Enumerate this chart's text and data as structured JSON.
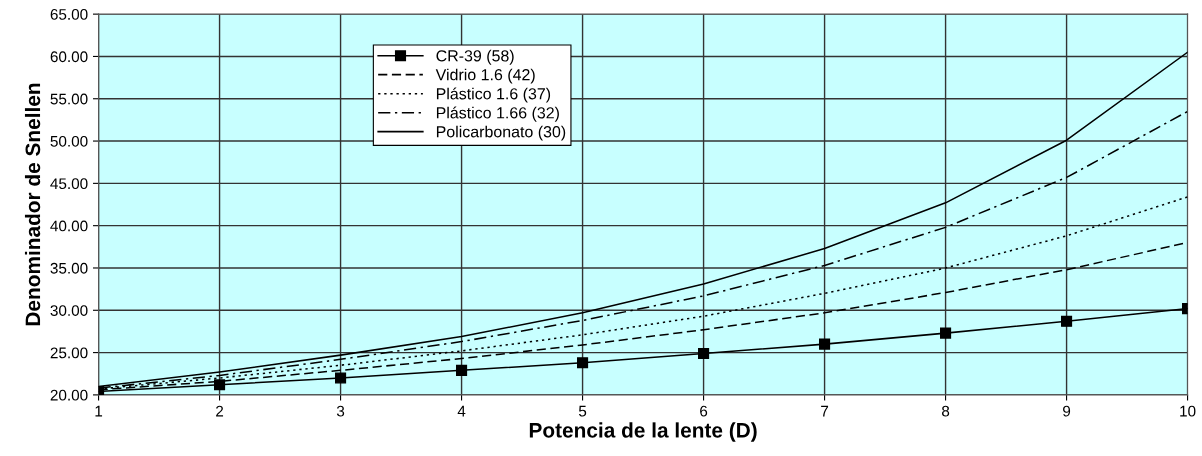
{
  "chart_data": {
    "type": "line",
    "xlabel": "Potencia de la lente (D)",
    "ylabel": "Denominador de Snellen",
    "x": [
      1,
      2,
      3,
      4,
      5,
      6,
      7,
      8,
      9,
      10
    ],
    "xlim": [
      1,
      10
    ],
    "xticks": [
      1,
      2,
      3,
      4,
      5,
      6,
      7,
      8,
      9,
      10
    ],
    "ylim": [
      20,
      65
    ],
    "yticks": [
      {
        "value": 20,
        "label": "20.00"
      },
      {
        "value": 25,
        "label": "25.00"
      },
      {
        "value": 30,
        "label": "30.00"
      },
      {
        "value": 35,
        "label": "35.00"
      },
      {
        "value": 40,
        "label": "40.00"
      },
      {
        "value": 45,
        "label": "45.00"
      },
      {
        "value": 50,
        "label": "50.00"
      },
      {
        "value": 55,
        "label": "55.00"
      },
      {
        "value": 60,
        "label": "60.00"
      },
      {
        "value": 65,
        "label": "65.00"
      }
    ],
    "grid": true,
    "legend": "top left",
    "series": [
      {
        "name": "CR-39 (58)",
        "color": "#000000",
        "marker": "square",
        "line_style": "solid",
        "values": [
          20.4,
          21.2,
          22.0,
          22.9,
          23.8,
          24.9,
          26.0,
          27.3,
          28.7,
          30.2
        ]
      },
      {
        "name": "Vidrio 1.6 (42)",
        "color": "#000000",
        "marker": "none",
        "line_style": "dashed",
        "values": [
          20.6,
          21.6,
          22.9,
          24.3,
          25.9,
          27.7,
          29.7,
          32.1,
          34.8,
          38.0
        ]
      },
      {
        "name": "Plástico 1.6 (37)",
        "color": "#000000",
        "marker": "none",
        "line_style": "dotted",
        "values": [
          20.7,
          22.0,
          23.5,
          25.2,
          27.1,
          29.3,
          32.0,
          35.0,
          38.8,
          43.4
        ]
      },
      {
        "name": "Plástico 1.66 (32)",
        "color": "#000000",
        "marker": "none",
        "line_style": "dashdot",
        "values": [
          20.8,
          22.3,
          24.2,
          26.3,
          28.8,
          31.7,
          35.3,
          39.8,
          45.7,
          53.5
        ]
      },
      {
        "name": "Policarbonato (30)",
        "color": "#000000",
        "marker": "none",
        "line_style": "solid",
        "values": [
          21.0,
          22.7,
          24.7,
          26.9,
          29.7,
          33.1,
          37.3,
          42.7,
          50.1,
          60.5
        ]
      }
    ]
  }
}
